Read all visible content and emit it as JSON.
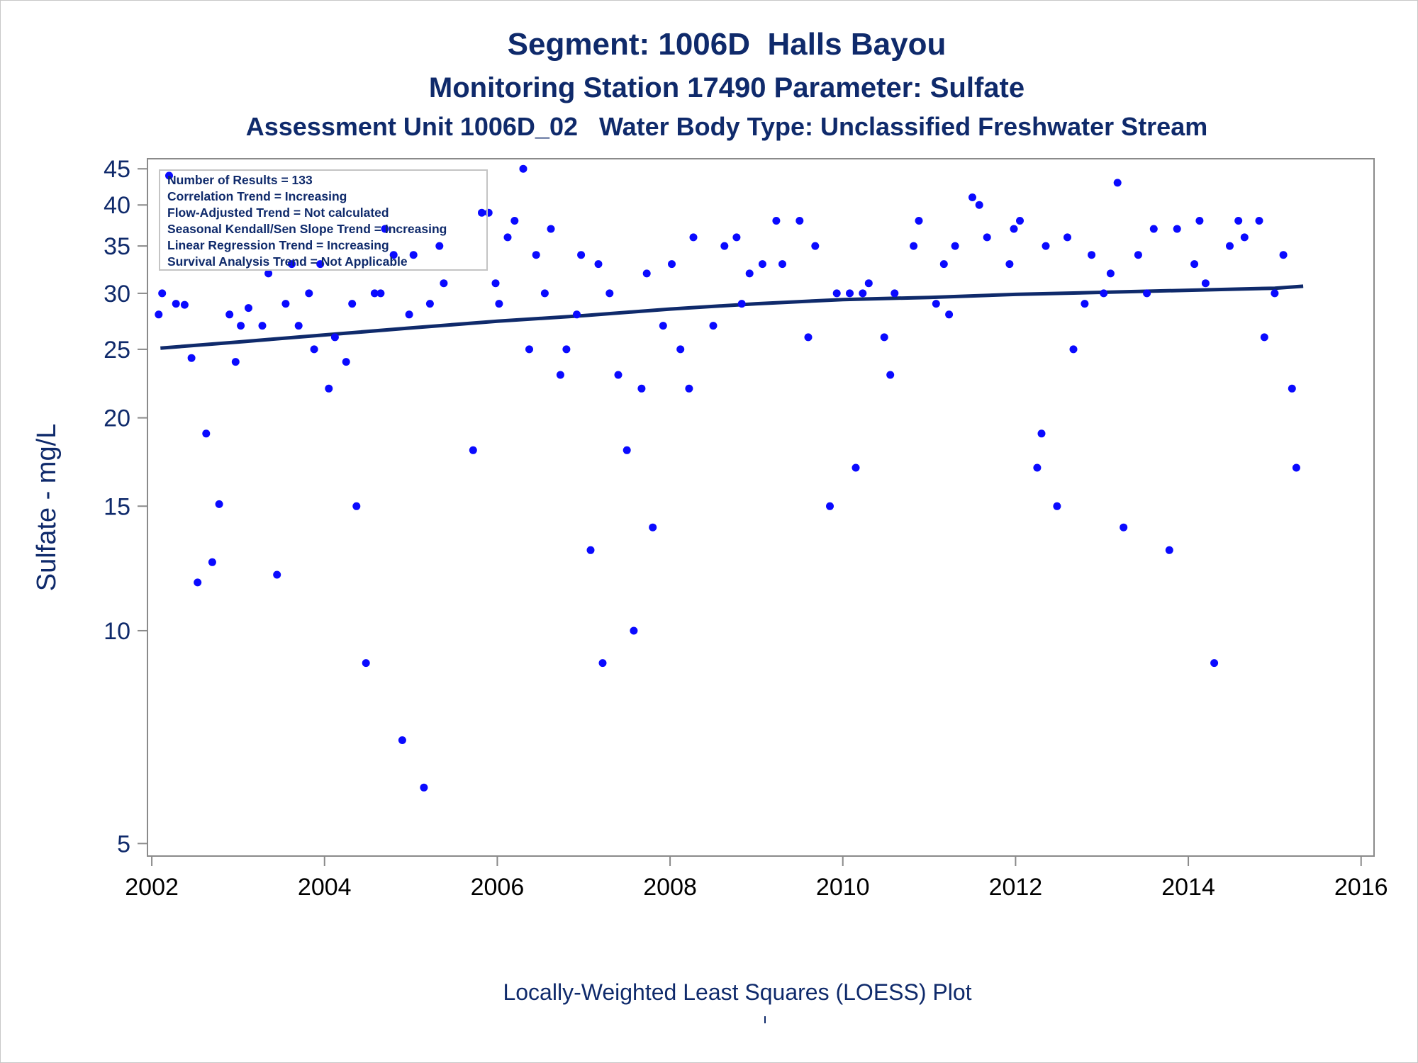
{
  "titles": {
    "line1": "Segment: 1006D  Halls Bayou",
    "line2": "Monitoring Station 17490 Parameter: Sulfate",
    "line3": "Assessment Unit 1006D_02   Water Body Type: Unclassified Freshwater Stream"
  },
  "footnote": "Locally-Weighted Least Squares (LOESS) Plot",
  "chart_data": {
    "type": "scatter",
    "title": "Segment: 1006D  Halls Bayou",
    "ylabel": "Sulfate - mg/L",
    "xlabel": "",
    "yscale": "log",
    "ylim": [
      4.8,
      46.5
    ],
    "xlim": [
      2001.95,
      2016.15
    ],
    "yticks": [
      5,
      10,
      15,
      20,
      25,
      30,
      35,
      40,
      45
    ],
    "xticks": [
      2002,
      2004,
      2006,
      2008,
      2010,
      2012,
      2014,
      2016
    ],
    "grid": false,
    "legend_placement": "top-left",
    "stats_box": [
      "Number of Results = 133",
      "Correlation Trend = Increasing",
      "Flow-Adjusted Trend = Not calculated",
      "Seasonal Kendall/Sen Slope Trend = Increasing",
      "Linear Regression Trend = Increasing",
      "Survival Analysis Trend = Not Applicable"
    ],
    "colors": {
      "points": "#0a0aff",
      "trend": "#0f2a6b",
      "text": "#0f2a6b",
      "axis": "#8a8a8a"
    },
    "points": [
      [
        2002.08,
        28
      ],
      [
        2002.12,
        30
      ],
      [
        2002.2,
        44
      ],
      [
        2002.28,
        29
      ],
      [
        2002.38,
        28.9
      ],
      [
        2002.46,
        24.3
      ],
      [
        2002.53,
        11.7
      ],
      [
        2002.63,
        19
      ],
      [
        2002.7,
        12.5
      ],
      [
        2002.78,
        15.1
      ],
      [
        2002.9,
        28
      ],
      [
        2002.97,
        24
      ],
      [
        2003.03,
        27
      ],
      [
        2003.12,
        28.6
      ],
      [
        2003.28,
        27
      ],
      [
        2003.35,
        32
      ],
      [
        2003.45,
        12
      ],
      [
        2003.55,
        29
      ],
      [
        2003.62,
        33
      ],
      [
        2003.7,
        27
      ],
      [
        2003.82,
        30
      ],
      [
        2003.88,
        25
      ],
      [
        2003.95,
        33
      ],
      [
        2004.05,
        22
      ],
      [
        2004.12,
        26
      ],
      [
        2004.25,
        24
      ],
      [
        2004.32,
        29
      ],
      [
        2004.37,
        15
      ],
      [
        2004.48,
        9
      ],
      [
        2004.58,
        30
      ],
      [
        2004.65,
        30
      ],
      [
        2004.7,
        37
      ],
      [
        2004.8,
        34
      ],
      [
        2004.9,
        7
      ],
      [
        2004.98,
        28
      ],
      [
        2005.03,
        34
      ],
      [
        2005.15,
        6
      ],
      [
        2005.22,
        29
      ],
      [
        2005.33,
        35
      ],
      [
        2005.38,
        31
      ],
      [
        2005.72,
        18
      ],
      [
        2005.82,
        39
      ],
      [
        2005.9,
        39
      ],
      [
        2005.98,
        31
      ],
      [
        2006.02,
        29
      ],
      [
        2006.12,
        36
      ],
      [
        2006.2,
        38
      ],
      [
        2006.3,
        45
      ],
      [
        2006.37,
        25
      ],
      [
        2006.45,
        34
      ],
      [
        2006.55,
        30
      ],
      [
        2006.62,
        37
      ],
      [
        2006.73,
        23
      ],
      [
        2006.8,
        25
      ],
      [
        2006.92,
        28
      ],
      [
        2006.97,
        34
      ],
      [
        2007.08,
        13
      ],
      [
        2007.17,
        33
      ],
      [
        2007.22,
        9
      ],
      [
        2007.3,
        30
      ],
      [
        2007.4,
        23
      ],
      [
        2007.5,
        18
      ],
      [
        2007.58,
        10
      ],
      [
        2007.67,
        22
      ],
      [
        2007.73,
        32
      ],
      [
        2007.8,
        14
      ],
      [
        2007.92,
        27
      ],
      [
        2008.02,
        33
      ],
      [
        2008.12,
        25
      ],
      [
        2008.22,
        22
      ],
      [
        2008.27,
        36
      ],
      [
        2008.5,
        27
      ],
      [
        2008.63,
        35
      ],
      [
        2008.77,
        36
      ],
      [
        2008.83,
        29
      ],
      [
        2008.92,
        32
      ],
      [
        2009.07,
        33
      ],
      [
        2009.23,
        38
      ],
      [
        2009.3,
        33
      ],
      [
        2009.5,
        38
      ],
      [
        2009.6,
        26
      ],
      [
        2009.68,
        35
      ],
      [
        2009.85,
        15
      ],
      [
        2009.93,
        30
      ],
      [
        2010.08,
        30
      ],
      [
        2010.15,
        17
      ],
      [
        2010.23,
        30
      ],
      [
        2010.3,
        31
      ],
      [
        2010.48,
        26
      ],
      [
        2010.55,
        23
      ],
      [
        2010.6,
        30
      ],
      [
        2010.82,
        35
      ],
      [
        2010.88,
        38
      ],
      [
        2011.08,
        29
      ],
      [
        2011.17,
        33
      ],
      [
        2011.23,
        28
      ],
      [
        2011.3,
        35
      ],
      [
        2011.5,
        41
      ],
      [
        2011.58,
        40
      ],
      [
        2011.67,
        36
      ],
      [
        2011.93,
        33
      ],
      [
        2011.98,
        37
      ],
      [
        2012.05,
        38
      ],
      [
        2012.25,
        17
      ],
      [
        2012.3,
        19
      ],
      [
        2012.35,
        35
      ],
      [
        2012.48,
        15
      ],
      [
        2012.6,
        36
      ],
      [
        2012.67,
        25
      ],
      [
        2012.8,
        29
      ],
      [
        2012.88,
        34
      ],
      [
        2013.02,
        30
      ],
      [
        2013.1,
        32
      ],
      [
        2013.18,
        43
      ],
      [
        2013.25,
        14
      ],
      [
        2013.42,
        34
      ],
      [
        2013.52,
        30
      ],
      [
        2013.6,
        37
      ],
      [
        2013.78,
        13
      ],
      [
        2013.87,
        37
      ],
      [
        2014.07,
        33
      ],
      [
        2014.13,
        38
      ],
      [
        2014.2,
        31
      ],
      [
        2014.3,
        9
      ],
      [
        2014.48,
        35
      ],
      [
        2014.58,
        38
      ],
      [
        2014.65,
        36
      ],
      [
        2014.82,
        38
      ],
      [
        2014.88,
        26
      ],
      [
        2015.0,
        30
      ],
      [
        2015.1,
        34
      ],
      [
        2015.2,
        22
      ],
      [
        2015.25,
        17
      ]
    ],
    "trend_line": {
      "x": [
        2002.1,
        2003,
        2004,
        2005,
        2006,
        2007,
        2008,
        2009,
        2010,
        2011,
        2012,
        2013,
        2014,
        2015,
        2015.33
      ],
      "y": [
        25.1,
        25.6,
        26.2,
        26.8,
        27.4,
        27.9,
        28.5,
        29.0,
        29.4,
        29.6,
        29.9,
        30.1,
        30.3,
        30.5,
        30.7
      ]
    }
  }
}
